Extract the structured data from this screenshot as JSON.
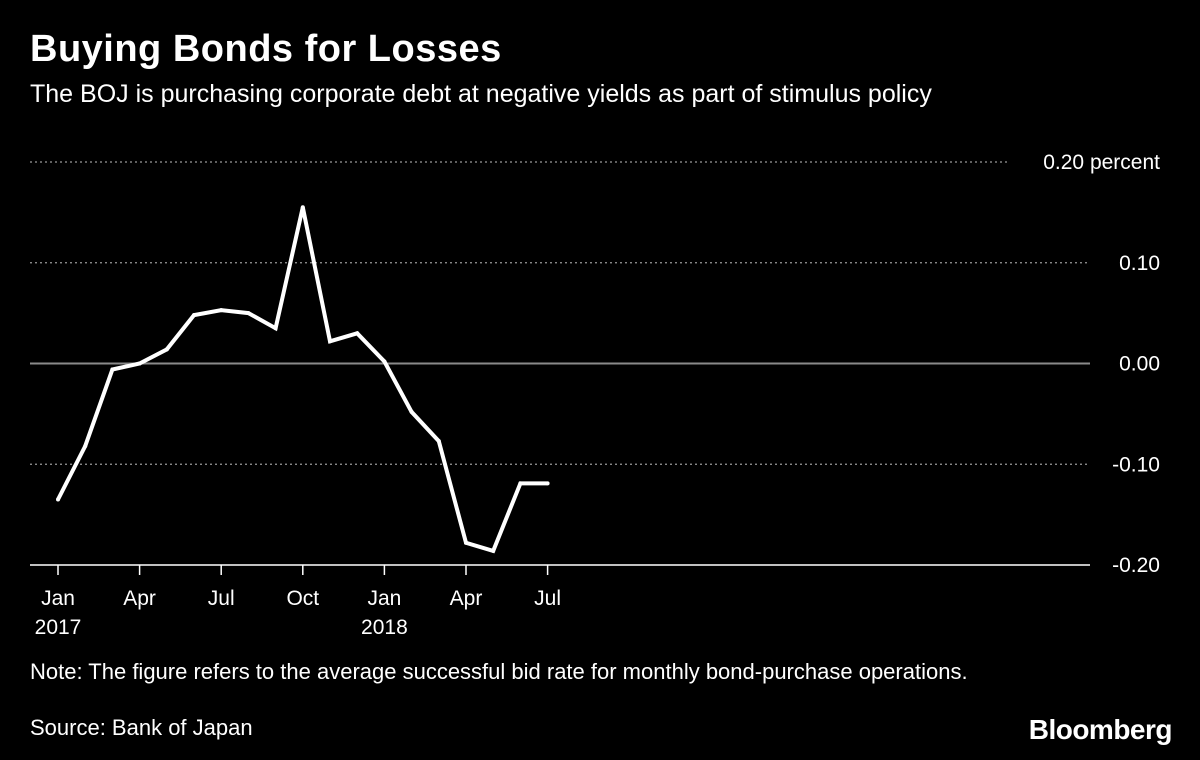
{
  "header": {
    "title": "Buying Bonds for Losses",
    "subtitle": "The BOJ is purchasing corporate debt at negative yields as part of stimulus policy"
  },
  "footer": {
    "note": "Note: The figure refers to the average successful bid rate for monthly bond-purchase operations.",
    "source": "Source: Bank of Japan",
    "brand": "Bloomberg"
  },
  "colors": {
    "background": "#000000",
    "line": "#ffffff",
    "zero_line": "#8a8a8a",
    "grid": "#9a9a9a",
    "text": "#ffffff"
  },
  "chart_data": {
    "type": "line",
    "title": "Buying Bonds for Losses",
    "subtitle": "The BOJ is purchasing corporate debt at negative yields as part of stimulus policy",
    "xlabel": "",
    "ylabel": "percent",
    "ylim": [
      -0.2,
      0.2
    ],
    "y_ticks": [
      {
        "value": 0.2,
        "label": "0.20 percent"
      },
      {
        "value": 0.1,
        "label": "0.10"
      },
      {
        "value": 0.0,
        "label": "0.00"
      },
      {
        "value": -0.1,
        "label": "-0.10"
      },
      {
        "value": -0.2,
        "label": "-0.20"
      }
    ],
    "x_ticks": [
      {
        "index": 0,
        "label": "Jan",
        "sublabel": "2017"
      },
      {
        "index": 3,
        "label": "Apr",
        "sublabel": ""
      },
      {
        "index": 6,
        "label": "Jul",
        "sublabel": ""
      },
      {
        "index": 9,
        "label": "Oct",
        "sublabel": ""
      },
      {
        "index": 12,
        "label": "Jan",
        "sublabel": "2018"
      },
      {
        "index": 15,
        "label": "Apr",
        "sublabel": ""
      },
      {
        "index": 18,
        "label": "Jul",
        "sublabel": ""
      }
    ],
    "grid": true,
    "series": [
      {
        "name": "Average successful bid rate",
        "x": [
          0.0,
          1.0,
          2.0,
          3.0,
          4.0,
          5.0,
          6.0,
          7.0,
          8.0,
          9.0,
          10.0,
          11.0,
          12.0,
          13.0,
          14.0,
          15.0,
          16.0,
          17.0,
          18.0
        ],
        "values": [
          -0.135,
          -0.082,
          -0.006,
          0.0,
          0.014,
          0.048,
          0.053,
          0.05,
          0.035,
          0.155,
          0.022,
          0.03,
          0.002,
          -0.048,
          -0.077,
          -0.178,
          -0.186,
          -0.119,
          -0.119
        ]
      }
    ]
  }
}
